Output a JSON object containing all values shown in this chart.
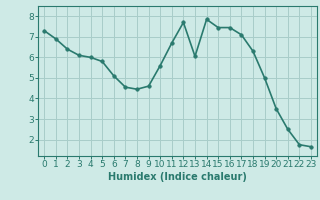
{
  "x": [
    0,
    1,
    2,
    3,
    4,
    5,
    6,
    7,
    8,
    9,
    10,
    11,
    12,
    13,
    14,
    15,
    16,
    17,
    18,
    19,
    20,
    21,
    22,
    23
  ],
  "y": [
    7.3,
    6.9,
    6.4,
    6.1,
    6.0,
    5.8,
    5.1,
    4.55,
    4.45,
    4.6,
    5.6,
    6.7,
    7.7,
    6.05,
    7.85,
    7.45,
    7.45,
    7.1,
    6.3,
    5.0,
    3.5,
    2.5,
    1.75,
    1.65
  ],
  "line_color": "#2a7a6e",
  "marker": "o",
  "marker_size": 2.5,
  "bg_color": "#ceeae6",
  "grid_color": "#a8cdc9",
  "xlabel": "Humidex (Indice chaleur)",
  "ylim": [
    1.2,
    8.5
  ],
  "xlim": [
    -0.5,
    23.5
  ],
  "yticks": [
    2,
    3,
    4,
    5,
    6,
    7,
    8
  ],
  "xticks": [
    0,
    1,
    2,
    3,
    4,
    5,
    6,
    7,
    8,
    9,
    10,
    11,
    12,
    13,
    14,
    15,
    16,
    17,
    18,
    19,
    20,
    21,
    22,
    23
  ],
  "tick_color": "#2a7a6e",
  "label_color": "#2a7a6e",
  "xlabel_fontsize": 7,
  "tick_fontsize": 6.5,
  "line_width": 1.2
}
